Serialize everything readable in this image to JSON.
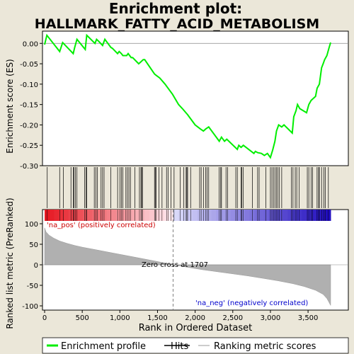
{
  "chart_data": {
    "type": "line",
    "title": "Enrichment plot:",
    "subtitle": "HALLMARK_FATTY_ACID_METABOLISM",
    "top_panel": {
      "ylabel": "Enrichment score (ES)",
      "ylim": [
        -0.3,
        0.03
      ],
      "yticks": [
        0.0,
        -0.05,
        -0.1,
        -0.15,
        -0.2,
        -0.25,
        -0.3
      ],
      "ytick_labels": [
        "0.00",
        "-0.05",
        "-0.10",
        "-0.15",
        "-0.20",
        "-0.25",
        "-0.30"
      ],
      "series": [
        {
          "name": "Enrichment profile",
          "color": "#00ee00",
          "x": [
            0,
            30,
            200,
            240,
            380,
            400,
            430,
            540,
            560,
            670,
            690,
            720,
            770,
            800,
            880,
            900,
            970,
            990,
            1020,
            1040,
            1090,
            1110,
            1150,
            1170,
            1250,
            1280,
            1310,
            1330,
            1460,
            1480,
            1530,
            1600,
            1700,
            1780,
            1830,
            1900,
            2000,
            2070,
            2110,
            2140,
            2180,
            2320,
            2350,
            2390,
            2420,
            2560,
            2580,
            2610,
            2640,
            2780,
            2800,
            2830,
            2880,
            2920,
            2960,
            3000,
            3030,
            3060,
            3080,
            3110,
            3150,
            3180,
            3290,
            3310,
            3340,
            3360,
            3390,
            3480,
            3510,
            3540,
            3600,
            3620,
            3650,
            3680,
            3700,
            3720,
            3750,
            3780,
            3800
          ],
          "y": [
            -0.003,
            0.02,
            -0.02,
            0.002,
            -0.025,
            -0.01,
            0.01,
            -0.015,
            0.02,
            0.0,
            0.01,
            0.005,
            -0.005,
            0.01,
            -0.01,
            -0.012,
            -0.025,
            -0.02,
            -0.025,
            -0.03,
            -0.03,
            -0.025,
            -0.035,
            -0.035,
            -0.05,
            -0.045,
            -0.04,
            -0.04,
            -0.075,
            -0.078,
            -0.085,
            -0.1,
            -0.125,
            -0.15,
            -0.16,
            -0.175,
            -0.2,
            -0.21,
            -0.215,
            -0.21,
            -0.205,
            -0.24,
            -0.23,
            -0.24,
            -0.235,
            -0.26,
            -0.25,
            -0.255,
            -0.25,
            -0.27,
            -0.265,
            -0.268,
            -0.27,
            -0.275,
            -0.27,
            -0.28,
            -0.262,
            -0.24,
            -0.215,
            -0.2,
            -0.205,
            -0.2,
            -0.22,
            -0.18,
            -0.165,
            -0.15,
            -0.16,
            -0.17,
            -0.15,
            -0.14,
            -0.13,
            -0.11,
            -0.1,
            -0.06,
            -0.05,
            -0.04,
            -0.03,
            -0.01,
            0.002
          ]
        }
      ],
      "hits": [
        35,
        200,
        250,
        350,
        380,
        390,
        410,
        430,
        530,
        550,
        560,
        660,
        680,
        700,
        750,
        770,
        790,
        880,
        970,
        1000,
        1020,
        1040,
        1080,
        1100,
        1120,
        1140,
        1200,
        1260,
        1280,
        1290,
        1300,
        1460,
        1470,
        1480,
        1520,
        1560,
        1620,
        1640,
        1680,
        1720,
        1800,
        1850,
        1880,
        1890,
        1900,
        1940,
        2060,
        2080,
        2110,
        2140,
        2160,
        2180,
        2320,
        2340,
        2350,
        2410,
        2430,
        2540,
        2560,
        2610,
        2620,
        2640,
        2760,
        2830,
        2850,
        2940,
        3000,
        3020,
        3040,
        3060,
        3080,
        3100,
        3120,
        3150,
        3280,
        3300,
        3330,
        3350,
        3380,
        3490,
        3510,
        3540,
        3560,
        3620,
        3640,
        3650,
        3680,
        3710,
        3730,
        3770
      ]
    },
    "bottom_panel": {
      "ylabel": "Ranked list metric (PreRanked)",
      "xlabel": "Rank in Ordered Dataset",
      "ylim": [
        -100,
        100
      ],
      "yticks": [
        100,
        50,
        0,
        -50,
        -100
      ],
      "ytick_labels": [
        "100",
        "50",
        "0",
        "-50",
        "-100"
      ],
      "metric_curve": {
        "x": [
          0,
          20,
          60,
          120,
          200,
          300,
          400,
          500,
          700,
          900,
          1100,
          1300,
          1500,
          1707,
          1900,
          2100,
          2300,
          2500,
          2700,
          2900,
          3100,
          3300,
          3450,
          3600,
          3700,
          3750,
          3780,
          3800
        ],
        "y": [
          90,
          80,
          72,
          65,
          58,
          52,
          47,
          43,
          36,
          29,
          22,
          15,
          8,
          0,
          -6,
          -12,
          -17,
          -22,
          -27,
          -33,
          -39,
          -46,
          -53,
          -62,
          -72,
          -82,
          -92,
          -99
        ]
      },
      "pos_label": "'na_pos' (positively correlated)",
      "neg_label": "'na_neg' (negatively correlated)",
      "zero_cross_label": "Zero cross at 1707",
      "zero_cross": 1707
    },
    "xlim": [
      0,
      3800
    ],
    "xticks": [
      0,
      500,
      1000,
      1500,
      2000,
      2500,
      3000,
      3500
    ],
    "xtick_labels": [
      "0",
      "500",
      "1,000",
      "1,500",
      "2,000",
      "2,500",
      "3,000",
      "3,500"
    ],
    "legend": [
      {
        "label": "Enrichment profile",
        "color": "#00ee00"
      },
      {
        "label": "Hits",
        "color": "#000000"
      },
      {
        "label": "Ranking metric scores",
        "color": "#bbbbbb"
      }
    ],
    "colors": {
      "profile": "#00ee00",
      "metric_fill": "#b0b0b0",
      "pos_text": "#cc0000",
      "neg_text": "#0000cc",
      "zero_line": "#808080"
    }
  }
}
